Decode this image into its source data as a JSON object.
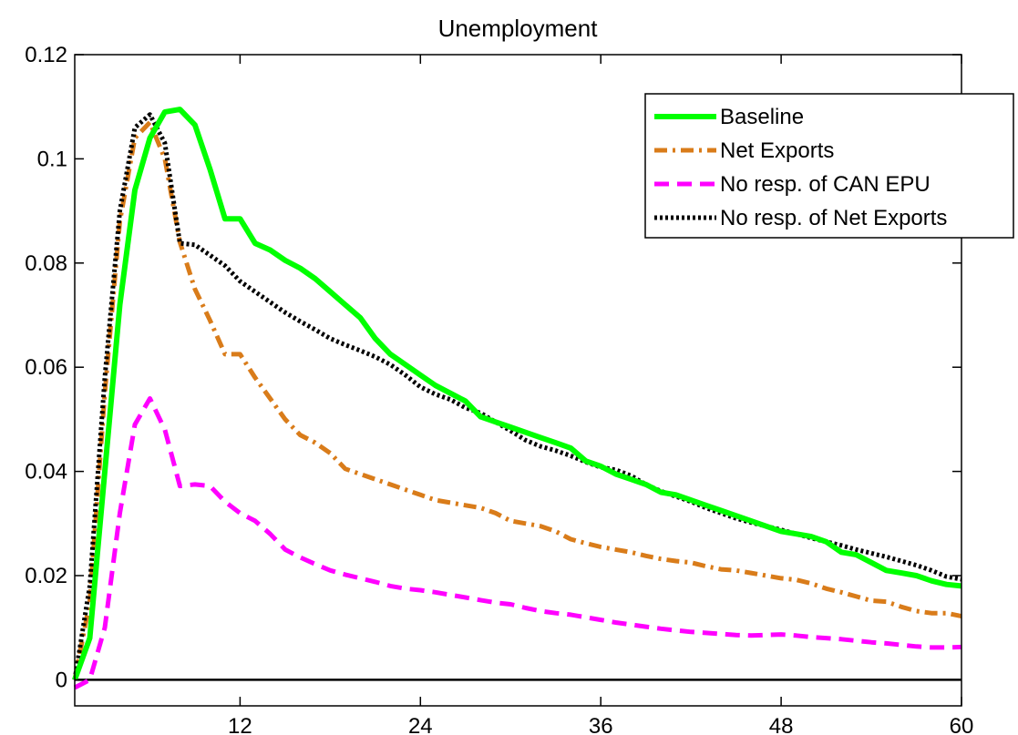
{
  "chart_data": {
    "type": "line",
    "title": "Unemployment",
    "xlabel": "",
    "ylabel": "",
    "xlim": [
      1,
      60
    ],
    "ylim": [
      -0.005,
      0.12
    ],
    "xticks": [
      12,
      24,
      36,
      48,
      60
    ],
    "xtick_labels": [
      "12",
      "24",
      "36",
      "48",
      "60"
    ],
    "yticks": [
      0,
      0.02,
      0.04,
      0.06,
      0.08,
      0.1,
      0.12
    ],
    "ytick_labels": [
      "0",
      "0.02",
      "0.04",
      "0.06",
      "0.08",
      "0.1",
      "0.12"
    ],
    "grid": false,
    "legend_position": "top-right",
    "zero_line": 0,
    "x": [
      1,
      2,
      3,
      4,
      5,
      6,
      7,
      8,
      9,
      10,
      11,
      12,
      13,
      14,
      15,
      16,
      17,
      18,
      19,
      20,
      21,
      22,
      23,
      24,
      25,
      26,
      27,
      28,
      29,
      30,
      31,
      32,
      33,
      34,
      35,
      36,
      37,
      38,
      39,
      40,
      41,
      42,
      43,
      44,
      45,
      46,
      47,
      48,
      49,
      50,
      51,
      52,
      53,
      54,
      55,
      56,
      57,
      58,
      59,
      60
    ],
    "series": [
      {
        "name": "Baseline",
        "color": "#00ff00",
        "style": "solid",
        "values": [
          0.0,
          0.008,
          0.04,
          0.072,
          0.094,
          0.104,
          0.109,
          0.1095,
          0.1065,
          0.098,
          0.0885,
          0.0885,
          0.0838,
          0.0825,
          0.0805,
          0.079,
          0.077,
          0.0745,
          0.072,
          0.0695,
          0.0655,
          0.0625,
          0.0605,
          0.0585,
          0.0565,
          0.055,
          0.0535,
          0.0505,
          0.0495,
          0.0485,
          0.0475,
          0.0465,
          0.0455,
          0.0445,
          0.042,
          0.041,
          0.0395,
          0.0385,
          0.0375,
          0.036,
          0.0355,
          0.0345,
          0.0335,
          0.0325,
          0.0315,
          0.0305,
          0.0295,
          0.0285,
          0.028,
          0.0275,
          0.0265,
          0.0245,
          0.024,
          0.0225,
          0.021,
          0.0205,
          0.02,
          0.019,
          0.0183,
          0.018
        ]
      },
      {
        "name": "Net Exports",
        "color": "#d97c1a",
        "style": "dashdot",
        "values": [
          0.0,
          0.015,
          0.055,
          0.088,
          0.104,
          0.107,
          0.1,
          0.084,
          0.075,
          0.069,
          0.0625,
          0.0625,
          0.058,
          0.054,
          0.05,
          0.047,
          0.0455,
          0.0435,
          0.0405,
          0.0395,
          0.0385,
          0.0375,
          0.0365,
          0.0355,
          0.0345,
          0.034,
          0.0335,
          0.033,
          0.032,
          0.0305,
          0.03,
          0.0295,
          0.0285,
          0.027,
          0.0262,
          0.0255,
          0.025,
          0.0245,
          0.0238,
          0.0232,
          0.0228,
          0.0225,
          0.0218,
          0.0212,
          0.021,
          0.0205,
          0.02,
          0.0195,
          0.0192,
          0.0185,
          0.0175,
          0.0168,
          0.016,
          0.0152,
          0.015,
          0.014,
          0.0132,
          0.0128,
          0.0128,
          0.0122
        ]
      },
      {
        "name": "No resp. of CAN EPU",
        "color": "#ff00ff",
        "style": "dashed",
        "values": [
          -0.0015,
          0.0,
          0.01,
          0.032,
          0.049,
          0.054,
          0.048,
          0.0372,
          0.0375,
          0.0372,
          0.0342,
          0.032,
          0.0305,
          0.028,
          0.025,
          0.0235,
          0.0222,
          0.021,
          0.0202,
          0.0195,
          0.0188,
          0.018,
          0.0175,
          0.0172,
          0.0168,
          0.0163,
          0.0158,
          0.0153,
          0.0148,
          0.0145,
          0.0138,
          0.0132,
          0.0128,
          0.0125,
          0.012,
          0.0115,
          0.011,
          0.0106,
          0.0102,
          0.0098,
          0.0095,
          0.0092,
          0.009,
          0.0088,
          0.0086,
          0.0085,
          0.0086,
          0.0087,
          0.0085,
          0.0082,
          0.008,
          0.0078,
          0.0075,
          0.0072,
          0.007,
          0.0067,
          0.0064,
          0.0062,
          0.0062,
          0.0063
        ]
      },
      {
        "name": "No resp. of Net Exports",
        "color": "#000000",
        "style": "dotted",
        "values": [
          0.0,
          0.018,
          0.058,
          0.09,
          0.106,
          0.1085,
          0.103,
          0.0838,
          0.0835,
          0.0815,
          0.0795,
          0.0765,
          0.0745,
          0.0725,
          0.0705,
          0.0688,
          0.0672,
          0.0655,
          0.0643,
          0.0632,
          0.062,
          0.0605,
          0.0585,
          0.0562,
          0.0548,
          0.0538,
          0.0522,
          0.0512,
          0.0495,
          0.0478,
          0.046,
          0.0448,
          0.044,
          0.043,
          0.0418,
          0.0408,
          0.0403,
          0.0392,
          0.0375,
          0.0362,
          0.0352,
          0.0342,
          0.033,
          0.032,
          0.031,
          0.0302,
          0.0295,
          0.0288,
          0.028,
          0.0272,
          0.0265,
          0.0258,
          0.025,
          0.0243,
          0.0236,
          0.0228,
          0.022,
          0.021,
          0.0198,
          0.0193
        ]
      }
    ]
  }
}
